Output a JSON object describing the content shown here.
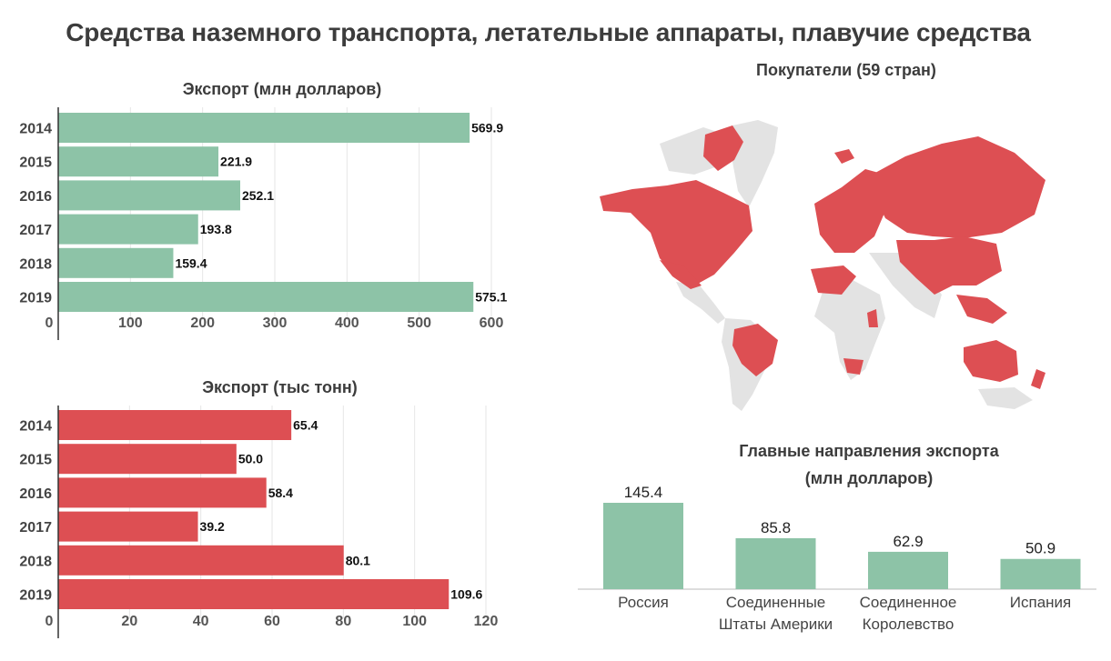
{
  "title": "Средства наземного транспорта, летательные аппараты, плавучие средства",
  "colors": {
    "green": "#8dc3a7",
    "red": "#dd4f53",
    "land_gray": "#e3e3e3",
    "grid": "#e6e6e6",
    "axis": "#333333"
  },
  "map": {
    "title": "Покупатели (59 стран)"
  },
  "chart_data": [
    {
      "type": "bar",
      "orientation": "horizontal",
      "title": "Экспорт (млн долларов)",
      "categories": [
        "2014",
        "2015",
        "2016",
        "2017",
        "2018",
        "2019"
      ],
      "values": [
        569.9,
        221.9,
        252.1,
        193.8,
        159.4,
        575.1
      ],
      "value_labels": [
        "569.9",
        "221.9",
        "252.1",
        "193.8",
        "159.4",
        "575.1"
      ],
      "xlim": [
        0,
        600
      ],
      "ticks": [
        "0",
        "100",
        "200",
        "300",
        "400",
        "500",
        "600"
      ],
      "color": "#8dc3a7",
      "grid": true
    },
    {
      "type": "bar",
      "orientation": "horizontal",
      "title": "Экспорт (тыс тонн)",
      "categories": [
        "2014",
        "2015",
        "2016",
        "2017",
        "2018",
        "2019"
      ],
      "values": [
        65.4,
        50.0,
        58.4,
        39.2,
        80.1,
        109.6
      ],
      "value_labels": [
        "65.4",
        "50.0",
        "58.4",
        "39.2",
        "80.1",
        "109.6"
      ],
      "xlim": [
        0,
        120
      ],
      "ticks": [
        "0",
        "20",
        "40",
        "60",
        "80",
        "100",
        "120"
      ],
      "color": "#dd4f53",
      "grid": true
    },
    {
      "type": "bar",
      "orientation": "vertical",
      "title_lines": [
        "Главные направления экспорта",
        "(млн долларов)"
      ],
      "categories": [
        [
          "Россия"
        ],
        [
          "Соединенные",
          "Штаты Америки"
        ],
        [
          "Соединенное",
          "Королевство"
        ],
        [
          "Испания"
        ]
      ],
      "values": [
        145.4,
        85.8,
        62.9,
        50.9
      ],
      "value_labels": [
        "145.4",
        "85.8",
        "62.9",
        "50.9"
      ],
      "color": "#8dc3a7",
      "grid": false
    }
  ]
}
